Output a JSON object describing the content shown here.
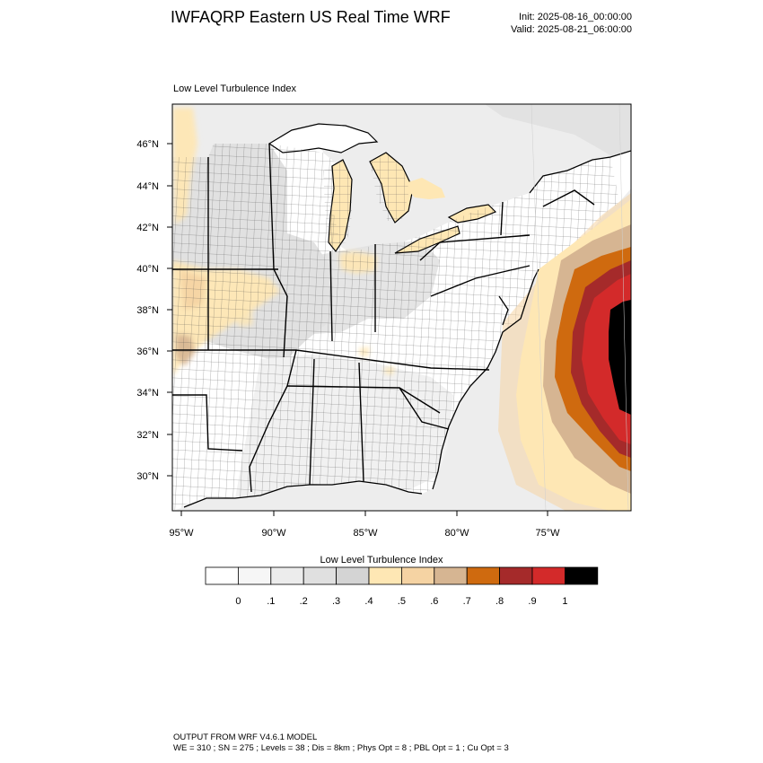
{
  "header": {
    "title": "IWFAQRP Eastern US Real Time WRF",
    "init": "Init: 2025-08-16_00:00:00",
    "valid": "Valid: 2025-08-21_06:00:00"
  },
  "map": {
    "subtitle": "Low Level Turbulence Index",
    "lat_labels": [
      "46°N",
      "44°N",
      "42°N",
      "40°N",
      "38°N",
      "36°N",
      "34°N",
      "32°N",
      "30°N"
    ],
    "lon_labels": [
      "95°W",
      "90°W",
      "85°W",
      "80°W",
      "75°W"
    ],
    "colors": {
      "land": "#ececec",
      "land_dark": "#dcdcdc",
      "water": "#f7f7f7",
      "outline": "#000000"
    }
  },
  "colorbar": {
    "title": "Low Level Turbulence Index",
    "tick_labels": [
      "0",
      ".1",
      ".2",
      ".3",
      ".4",
      ".5",
      ".6",
      ".7",
      ".8",
      ".9",
      "1"
    ],
    "colors": [
      "#ffffff",
      "#f6f6f6",
      "#ececec",
      "#e0e0e0",
      "#d4d4d4",
      "#fee7b4",
      "#f5d3a3",
      "#d6b592",
      "#cf6a0f",
      "#a52a2a",
      "#d32a2a",
      "#000000"
    ]
  },
  "footer": {
    "line1": "OUTPUT FROM WRF V4.6.1 MODEL",
    "line2": "WE = 310 ; SN = 275 ; Levels = 38 ; Dis = 8km ; Phys Opt = 8 ; PBL Opt = 1 ; Cu Opt = 3"
  }
}
